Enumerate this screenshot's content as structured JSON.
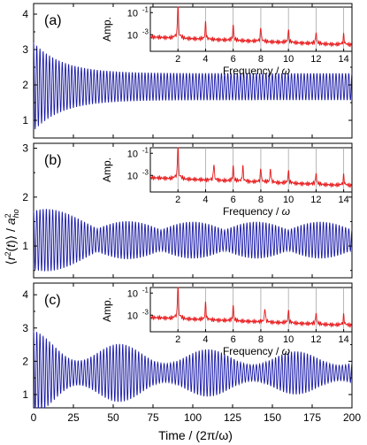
{
  "chart_data": {
    "type": "line",
    "xlabel": "Time / (2π/ω)",
    "ylabel_plain": "⟨r²(t)⟩ / a_ho²",
    "x_ticks": [
      "0",
      "25",
      "50",
      "75",
      "100",
      "125",
      "150",
      "175",
      "200"
    ],
    "xlim": [
      0,
      200
    ],
    "colors": {
      "main_line": "#1a1aa6",
      "inset_line": "#e8191b",
      "grid_lines": "#9a9a9a"
    },
    "panels": [
      {
        "label": "(a)",
        "ylim": [
          0.5,
          4.3
        ],
        "y_ticks": [
          "1",
          "2",
          "3",
          "4"
        ],
        "signal": {
          "mean": 1.95,
          "amp_start": 1.25,
          "amp_end": 0.38,
          "damp_time": 18,
          "period": 2.0
        },
        "inset": {
          "ylabel": "Amp.",
          "xlabel": "Frequency / ω",
          "x_ticks": [
            "2",
            "4",
            "6",
            "8",
            "10",
            "12",
            "14"
          ],
          "y_ticks": [
            "10",
            "10"
          ],
          "y_exps": [
            "-1",
            "-3"
          ],
          "gridlines_x": [
            2,
            4,
            6,
            8,
            10,
            12,
            14
          ],
          "peaks": [
            2,
            4,
            6,
            8,
            10,
            12,
            14
          ]
        }
      },
      {
        "label": "(b)",
        "ylim": [
          0.35,
          3.1
        ],
        "y_ticks": [
          "1",
          "2",
          "3"
        ],
        "signal": {
          "mean": 1.12,
          "amp_start": 0.85,
          "amp_end": 0.3,
          "damp_time": 15,
          "period": 2.0
        },
        "inset": {
          "ylabel": "Amp.",
          "xlabel": "Frequency / ω",
          "x_ticks": [
            "2",
            "4",
            "6",
            "8",
            "10",
            "12",
            "14"
          ],
          "y_ticks": [
            "10",
            "10"
          ],
          "y_exps": [
            "-1",
            "-3"
          ],
          "gridlines_x": [
            2,
            4,
            6,
            8,
            10,
            12,
            14
          ],
          "peaks": [
            2,
            4.6,
            6,
            6.7,
            8,
            8.7,
            10,
            12,
            14
          ]
        }
      },
      {
        "label": "(c)",
        "ylim": [
          0.6,
          4.35
        ],
        "y_ticks": [
          "1",
          "2",
          "3",
          "4"
        ],
        "signal": {
          "mean": 1.65,
          "amp_start": 1.15,
          "amp_end": 0.55,
          "damp_time": 60,
          "period": 2.0
        },
        "inset": {
          "ylabel": "Amp.",
          "xlabel": "Frequency / ω",
          "x_ticks": [
            "2",
            "4",
            "6",
            "8",
            "10",
            "12",
            "14"
          ],
          "y_ticks": [
            "10",
            "10"
          ],
          "y_exps": [
            "-1",
            "-3"
          ],
          "gridlines_x": [
            2,
            4,
            6,
            8,
            10,
            12,
            14
          ],
          "peaks": [
            2,
            4,
            6,
            8.3,
            10,
            12,
            14
          ]
        }
      }
    ]
  }
}
